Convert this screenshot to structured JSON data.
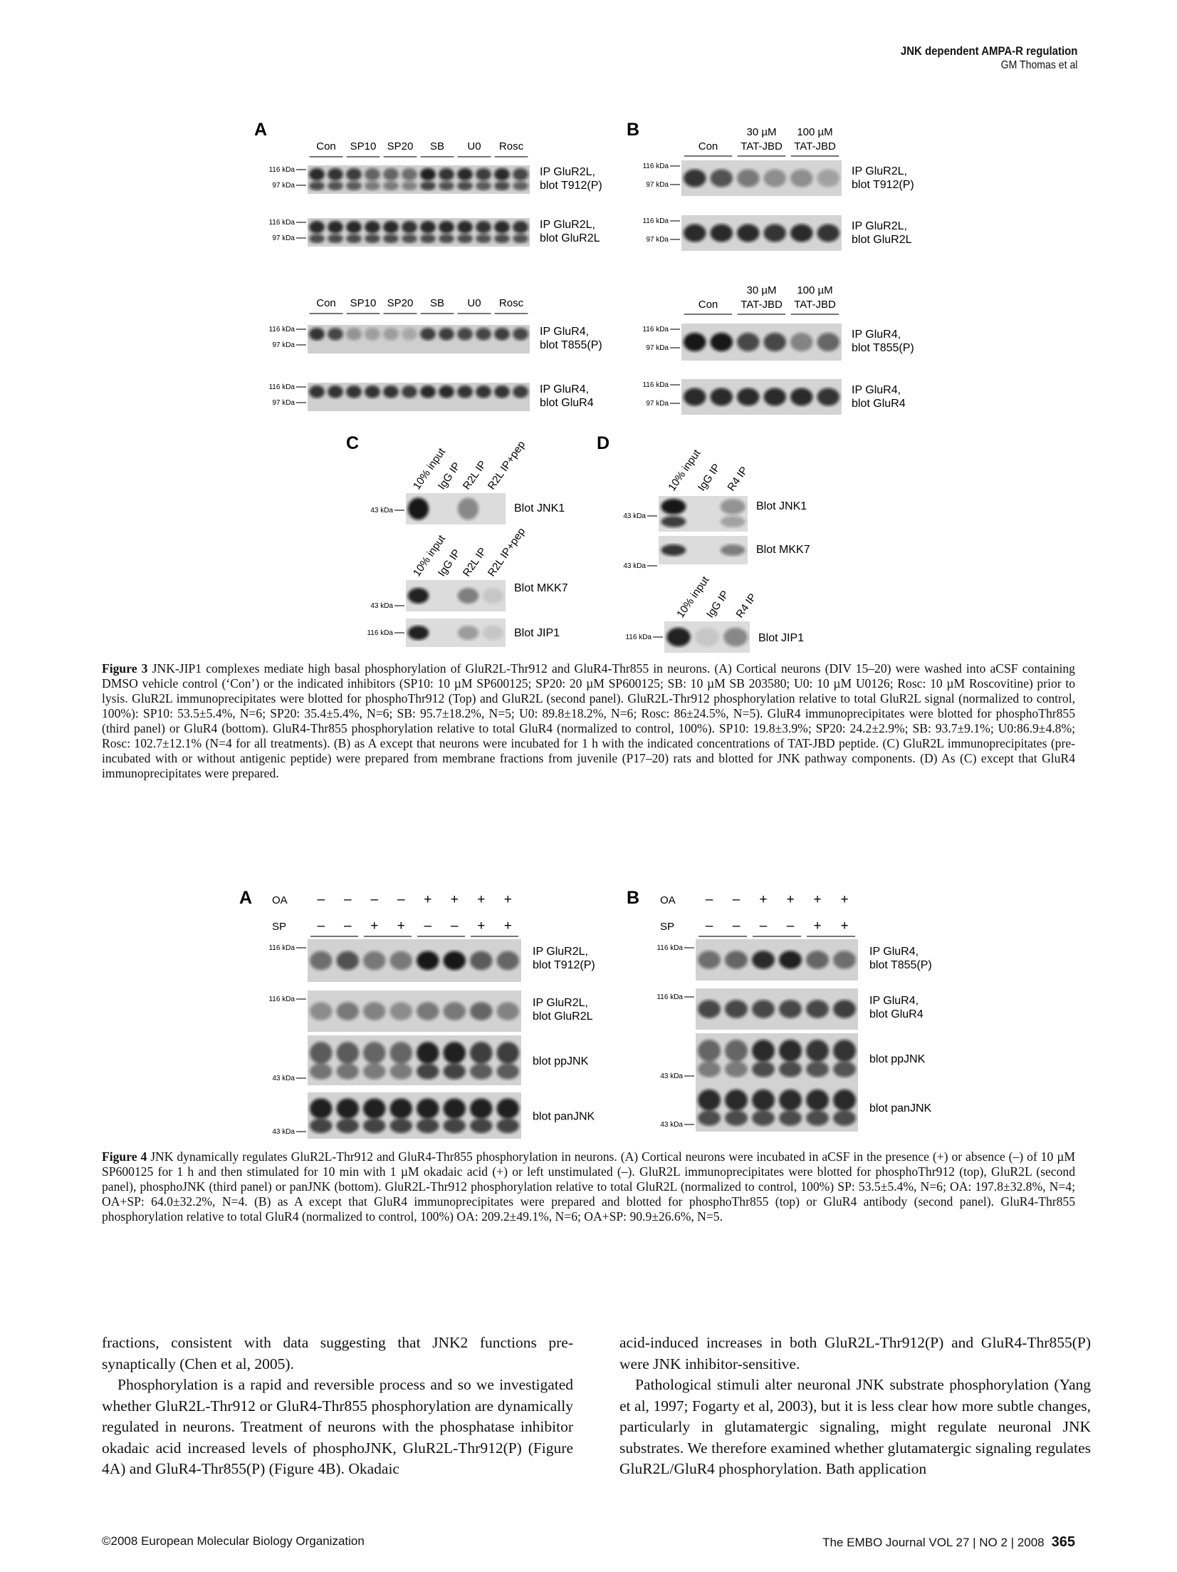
{
  "header": {
    "title": "JNK dependent AMPA-R regulation",
    "authors": "GM Thomas et al"
  },
  "figure3": {
    "panel_a": {
      "letter": "A",
      "lanes": [
        "Con",
        "SP10",
        "SP20",
        "SB",
        "U0",
        "Rosc"
      ],
      "blots": [
        {
          "l1": "IP GluR2L,",
          "l2": "blot T912(P)"
        },
        {
          "l1": "IP GluR2L,",
          "l2": "blot GluR2L"
        },
        {
          "l1": "IP GluR4,",
          "l2": "blot T855(P)"
        },
        {
          "l1": "IP GluR4,",
          "l2": "blot GluR4"
        }
      ]
    },
    "panel_b": {
      "letter": "B",
      "lanes": [
        {
          "l1": "",
          "l2": "Con"
        },
        {
          "l1": "30 µM",
          "l2": "TAT-JBD"
        },
        {
          "l1": "100 µM",
          "l2": "TAT-JBD"
        }
      ],
      "blots": [
        {
          "l1": "IP GluR2L,",
          "l2": "blot T912(P)"
        },
        {
          "l1": "IP GluR2L,",
          "l2": "blot GluR2L"
        },
        {
          "l1": "IP GluR4,",
          "l2": "blot T855(P)"
        },
        {
          "l1": "IP GluR4,",
          "l2": "blot GluR4"
        }
      ]
    },
    "panel_c": {
      "letter": "C",
      "lanes": [
        "10% input",
        "IgG IP",
        "R2L IP",
        "R2L IP+pep"
      ],
      "blots": [
        "Blot JNK1",
        "Blot MKK7",
        "Blot JIP1"
      ]
    },
    "panel_d": {
      "letter": "D",
      "lanes": [
        "10% input",
        "IgG IP",
        "R4 IP"
      ],
      "blots": [
        "Blot JNK1",
        "Blot MKK7",
        "Blot JIP1"
      ]
    },
    "kda": {
      "k116": "116 kDa",
      "k97": "97 kDa",
      "k43": "43 kDa"
    }
  },
  "caption3": {
    "label": "Figure 3",
    "text": "JNK-JIP1 complexes mediate high basal phosphorylation of GluR2L-Thr912 and GluR4-Thr855 in neurons. (A) Cortical neurons (DIV 15–20) were washed into aCSF containing DMSO vehicle control (‘Con’) or the indicated inhibitors (SP10: 10 µM SP600125; SP20: 20 µM SP600125; SB: 10 µM SB 203580; U0: 10 µM U0126; Rosc: 10 µM Roscovitine) prior to lysis. GluR2L immunoprecipitates were blotted for phosphoThr912 (Top) and GluR2L (second panel). GluR2L-Thr912 phosphorylation relative to total GluR2L signal (normalized to control, 100%): SP10: 53.5±5.4%, N=6; SP20: 35.4±5.4%, N=6; SB: 95.7±18.2%, N=5; U0: 89.8±18.2%, N=6; Rosc: 86±24.5%, N=5). GluR4 immunoprecipitates were blotted for phosphoThr855 (third panel) or GluR4 (bottom). GluR4-Thr855 phosphorylation relative to total GluR4 (normalized to control, 100%). SP10: 19.8±3.9%; SP20: 24.2±2.9%; SB: 93.7±9.1%; U0:86.9±4.8%; Rosc: 102.7±12.1% (N=4 for all treatments). (B) as A except that neurons were incubated for 1 h with the indicated concentrations of TAT-JBD peptide. (C) GluR2L immunoprecipitates (pre-incubated with or without antigenic peptide) were prepared from membrane fractions from juvenile (P17–20) rats and blotted for JNK pathway components. (D) As (C) except that GluR4 immunoprecipitates were prepared."
  },
  "figure4": {
    "panel_a": {
      "letter": "A",
      "oa_label": "OA",
      "sp_label": "SP",
      "oa": [
        "–",
        "–",
        "–",
        "–",
        "+",
        "+",
        "+",
        "+"
      ],
      "sp": [
        "–",
        "–",
        "+",
        "+",
        "–",
        "–",
        "+",
        "+"
      ],
      "blots": [
        {
          "l1": "IP GluR2L,",
          "l2": "blot T912(P)"
        },
        {
          "l1": "IP GluR2L,",
          "l2": "blot GluR2L"
        },
        {
          "l1": "blot ppJNK",
          "l2": ""
        },
        {
          "l1": "blot panJNK",
          "l2": ""
        }
      ]
    },
    "panel_b": {
      "letter": "B",
      "oa_label": "OA",
      "sp_label": "SP",
      "oa": [
        "–",
        "–",
        "+",
        "+",
        "+",
        "+"
      ],
      "sp": [
        "–",
        "–",
        "–",
        "–",
        "+",
        "+"
      ],
      "blots": [
        {
          "l1": "IP GluR4,",
          "l2": "blot T855(P)"
        },
        {
          "l1": "IP GluR4,",
          "l2": "blot GluR4"
        },
        {
          "l1": "blot ppJNK",
          "l2": ""
        },
        {
          "l1": "blot panJNK",
          "l2": ""
        }
      ]
    }
  },
  "caption4": {
    "label": "Figure 4",
    "text": "JNK dynamically regulates GluR2L-Thr912 and GluR4-Thr855 phosphorylation in neurons. (A) Cortical neurons were incubated in aCSF in the presence (+) or absence (–) of 10 µM SP600125 for 1 h and then stimulated for 10 min with 1 µM okadaic acid (+) or left unstimulated (–). GluR2L immunoprecipitates were blotted for phosphoThr912 (top), GluR2L (second panel), phosphoJNK (third panel) or panJNK (bottom). GluR2L-Thr912 phosphorylation relative to total GluR2L (normalized to control, 100%) SP: 53.5±5.4%, N=6; OA: 197.8±32.8%, N=4; OA+SP: 64.0±32.2%, N=4. (B) as A except that GluR4 immunoprecipitates were prepared and blotted for phosphoThr855 (top) or GluR4 antibody (second panel). GluR4-Thr855 phosphorylation relative to total GluR4 (normalized to control, 100%) OA: 209.2±49.1%, N=6; OA+SP: 90.9±26.6%, N=5."
  },
  "body": {
    "left": [
      "fractions, consistent with data suggesting that JNK2 functions pre-synaptically (Chen et al, 2005).",
      "Phosphorylation is a rapid and reversible process and so we investigated whether GluR2L-Thr912 or GluR4-Thr855 phosphorylation are dynamically regulated in neurons. Treatment of neurons with the phosphatase inhibitor okadaic acid increased levels of phosphoJNK, GluR2L-Thr912(P) (Figure 4A) and GluR4-Thr855(P) (Figure 4B). Okadaic"
    ],
    "right": [
      "acid-induced increases in both GluR2L-Thr912(P) and GluR4-Thr855(P) were JNK inhibitor-sensitive.",
      "Pathological stimuli alter neuronal JNK substrate phosphorylation (Yang et al, 1997; Fogarty et al, 2003), but it is less clear how more subtle changes, particularly in glutamatergic signaling, might regulate neuronal JNK substrates. We therefore examined whether glutamatergic signaling regulates GluR2L/GluR4 phosphorylation. Bath application"
    ]
  },
  "footer": {
    "copyright": "©2008 European Molecular Biology Organization",
    "journal": "The EMBO Journal  VOL 27 | NO 2 | 2008",
    "page": "365"
  }
}
